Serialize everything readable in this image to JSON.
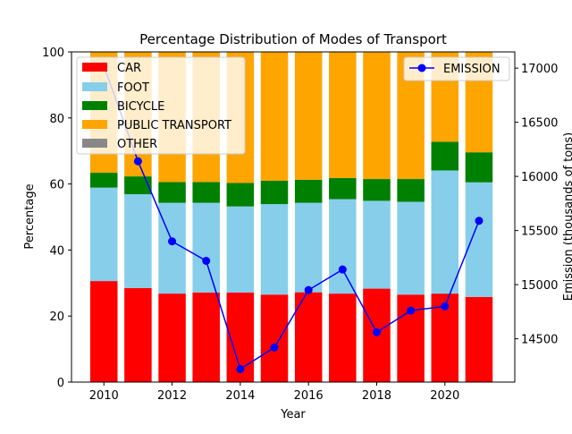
{
  "chart_data": {
    "type": "bar",
    "stacked": true,
    "title": "Percentage Distribution of Modes of Transport",
    "xlabel": "Year",
    "ylabel": "Percentage",
    "ylabel_right": "Emission (thousands of tons)",
    "ylim": [
      0,
      100
    ],
    "ylim_right": [
      14100,
      17150
    ],
    "categories": [
      2010,
      2011,
      2012,
      2013,
      2014,
      2015,
      2016,
      2017,
      2018,
      2019,
      2020,
      2021
    ],
    "x_ticks": [
      "2010",
      "2012",
      "2014",
      "2016",
      "2018",
      "2020"
    ],
    "y_ticks": [
      "0",
      "20",
      "40",
      "60",
      "80",
      "100"
    ],
    "y_ticks_right": [
      "14500",
      "15000",
      "15500",
      "16000",
      "16500",
      "17000"
    ],
    "series": [
      {
        "name": "CAR",
        "color": "#ff0000",
        "values": [
          30.6,
          28.5,
          26.8,
          27.1,
          27.1,
          26.5,
          27.2,
          26.8,
          28.3,
          26.5,
          26.8,
          25.8
        ]
      },
      {
        "name": "FOOT",
        "color": "#87ceeb",
        "values": [
          28.3,
          28.4,
          27.5,
          27.2,
          26.1,
          27.4,
          27.1,
          28.6,
          26.6,
          28.1,
          37.3,
          34.7
        ]
      },
      {
        "name": "BICYCLE",
        "color": "#008000",
        "values": [
          4.5,
          5.4,
          6.3,
          6.3,
          7.1,
          7.1,
          7.0,
          6.4,
          6.6,
          6.9,
          8.7,
          9.1
        ]
      },
      {
        "name": "PUBLIC TRANSPORT",
        "color": "#ffa500",
        "values": [
          36.6,
          37.7,
          39.4,
          39.4,
          39.7,
          39.0,
          38.7,
          38.2,
          38.5,
          38.5,
          27.2,
          30.4
        ]
      },
      {
        "name": "OTHER",
        "color": "#888888",
        "values": [
          0,
          0,
          0,
          0,
          0,
          0,
          0,
          0,
          0,
          0,
          0,
          0
        ]
      }
    ],
    "line_series": {
      "name": "EMISSION",
      "color": "#0000ff",
      "axis": "right",
      "values": [
        17020,
        16140,
        15400,
        15220,
        14220,
        14420,
        14950,
        15140,
        14560,
        14760,
        14800,
        15590
      ]
    },
    "legend_left_position": "upper-left",
    "legend_right_position": "upper-right"
  }
}
